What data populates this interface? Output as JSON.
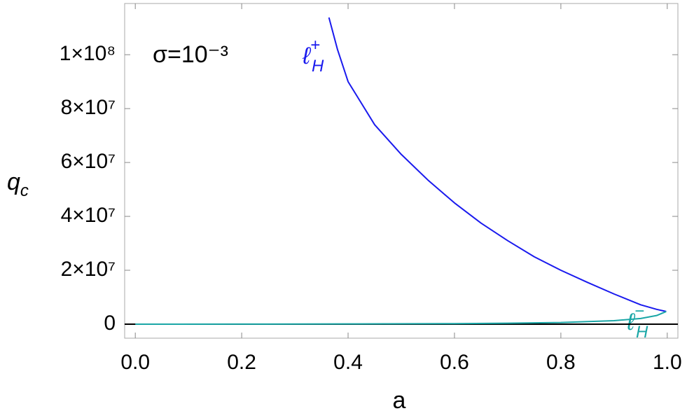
{
  "chart_data": {
    "type": "line",
    "x_label": "a",
    "y_label": {
      "main": "q",
      "sub": "c"
    },
    "annotation": "σ=10⁻³",
    "xlim": [
      -0.02,
      1.02
    ],
    "ylim": [
      -5200000,
      119000000
    ],
    "xticks": [
      {
        "value": 0,
        "label": "0.0"
      },
      0.2,
      0.4,
      0.6,
      0.8,
      {
        "value": 1,
        "label": "1.0"
      }
    ],
    "yticks": [
      0,
      {
        "value": 20000000,
        "label": "2×10⁷"
      },
      {
        "value": 40000000,
        "label": "4×10⁷"
      },
      {
        "value": 60000000,
        "label": "6×10⁷"
      },
      {
        "value": 80000000,
        "label": "8×10⁷"
      },
      {
        "value": 100000000,
        "label": "1×10⁸"
      }
    ],
    "reference_line": 0,
    "series": [
      {
        "name": "ℓ",
        "name_sup": "+",
        "name_sub": "H",
        "color": "#1a1aee",
        "x": [
          0.364,
          0.38,
          0.4,
          0.45,
          0.5,
          0.55,
          0.6,
          0.65,
          0.7,
          0.75,
          0.8,
          0.85,
          0.9,
          0.95,
          0.98,
          0.998
        ],
        "values": [
          113800000,
          102000000,
          90000000,
          74000000,
          63000000,
          53500000,
          45000000,
          37500000,
          31000000,
          25000000,
          20000000,
          15500000,
          11200000,
          7200000,
          5500000,
          4700000
        ]
      },
      {
        "name": "ℓ",
        "name_sup": "−",
        "name_sub": "H",
        "color": "#1aa6a6",
        "x": [
          0.998,
          0.98,
          0.95,
          0.9,
          0.8,
          0.7,
          0.6,
          0.4,
          0.2,
          0.0
        ],
        "values": [
          4700000,
          3200000,
          2100000,
          1300000,
          600000,
          350000,
          200000,
          80000,
          20000,
          0
        ]
      }
    ]
  }
}
